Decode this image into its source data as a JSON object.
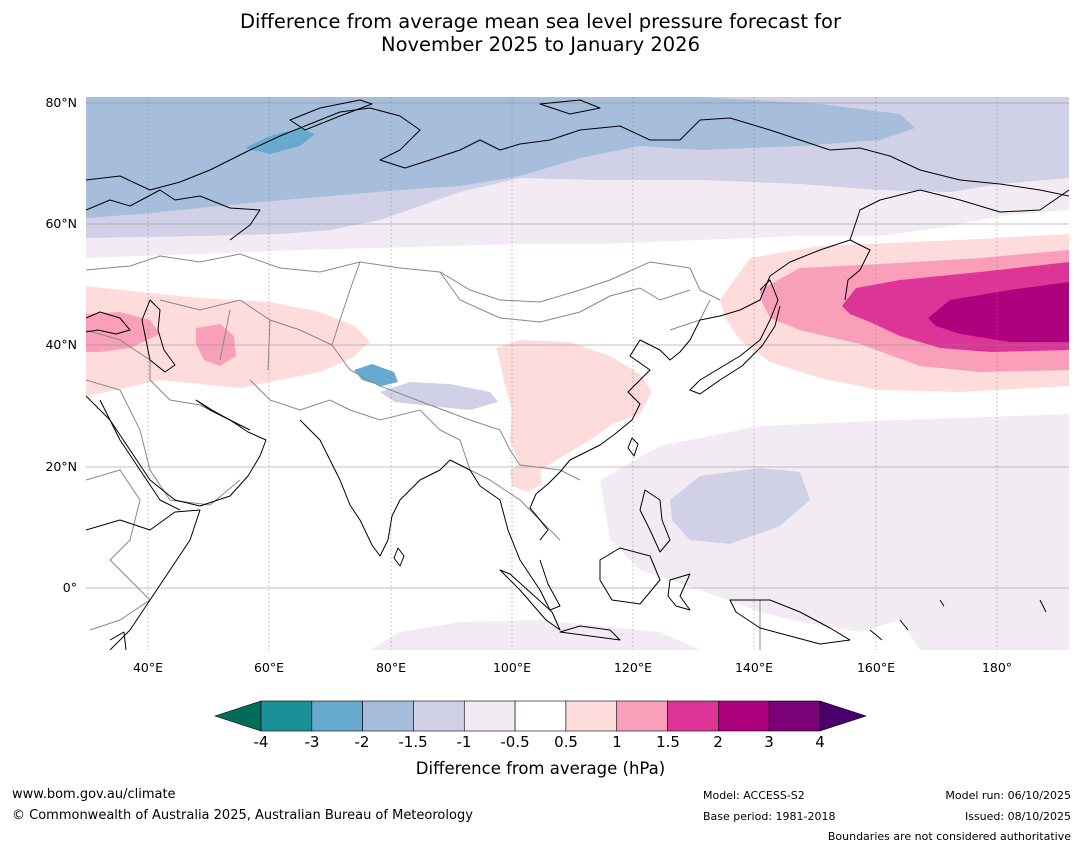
{
  "title": {
    "line1": "Difference from average mean sea level pressure forecast for",
    "line2": "November 2025 to January 2026"
  },
  "map": {
    "lat_labels": [
      "80°N",
      "60°N",
      "40°N",
      "20°N",
      "0°"
    ],
    "lon_labels": [
      "40°E",
      "60°E",
      "80°E",
      "100°E",
      "120°E",
      "140°E",
      "160°E",
      "180°"
    ],
    "lat_range": [
      -10,
      81
    ],
    "lon_range": [
      30,
      192
    ],
    "colors": {
      "ocean_fill": "#ffffff",
      "coastline": "#000000",
      "border": "#888888",
      "gridline": "#888888"
    }
  },
  "colorbar": {
    "ticks": [
      "-4",
      "-3",
      "-2",
      "-1.5",
      "-1",
      "-0.5",
      "0.5",
      "1",
      "1.5",
      "2",
      "3",
      "4"
    ],
    "below_color": "#016c59",
    "above_color": "#49006a",
    "colors": [
      "#1b9097",
      "#67a9cf",
      "#a6bddb",
      "#d0d1e6",
      "#f3ebf4",
      "#ffffff",
      "#fedcdb",
      "#f99fba",
      "#dd3497",
      "#ae017e",
      "#7a0177"
    ],
    "label": "Difference from average (hPa)"
  },
  "footer": {
    "website": "www.bom.gov.au/climate",
    "copyright": "© Commonwealth of Australia 2025, Australian Bureau of Meteorology",
    "model": "Model: ACCESS-S2",
    "base_period": "Base period: 1981-2018",
    "model_run": "Model run: 06/10/2025",
    "issued": "Issued: 08/10/2025",
    "disclaimer": "Boundaries are not considered authoritative"
  }
}
